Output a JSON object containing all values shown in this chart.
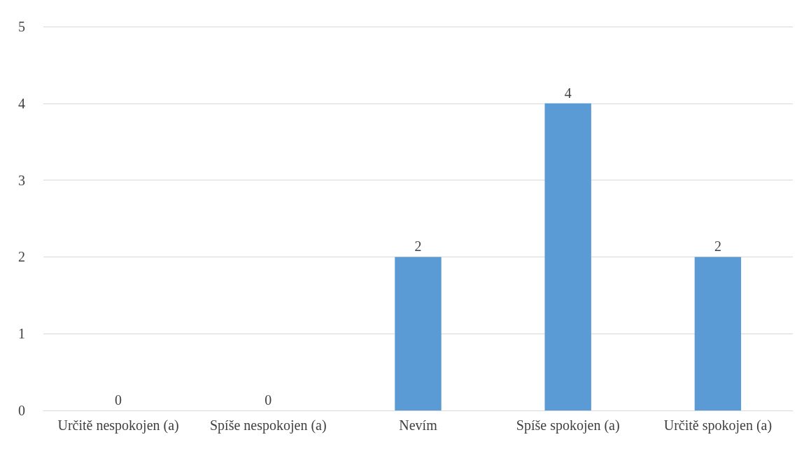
{
  "chart_data": {
    "type": "bar",
    "categories": [
      "Určitě nespokojen (a)",
      "Spíše nespokojen (a)",
      "Nevím",
      "Spíše spokojen (a)",
      "Určitě spokojen (a)"
    ],
    "values": [
      0,
      0,
      2,
      4,
      2
    ],
    "color": "#5b9bd5",
    "ylim": [
      0,
      5
    ],
    "yticks": [
      0,
      1,
      2,
      3,
      4,
      5
    ],
    "grid": "y",
    "data_labels": true
  }
}
